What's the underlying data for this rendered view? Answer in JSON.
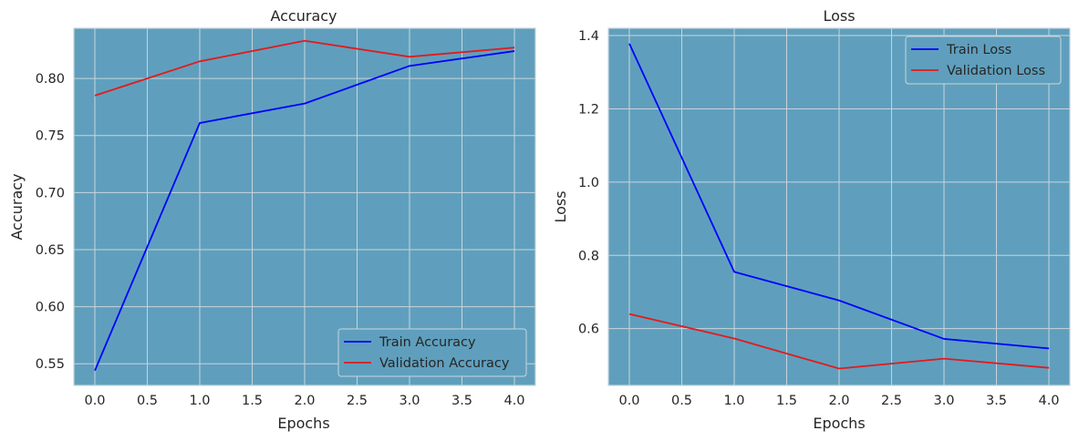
{
  "chart_data": [
    {
      "type": "line",
      "title": "Accuracy",
      "xlabel": "Epochs",
      "ylabel": "Accuracy",
      "x": [
        0,
        1,
        2,
        3,
        4
      ],
      "xlim": [
        -0.2,
        4.2
      ],
      "ylim": [
        0.531,
        0.844
      ],
      "xticks": [
        0.0,
        0.5,
        1.0,
        1.5,
        2.0,
        2.5,
        3.0,
        3.5,
        4.0
      ],
      "xtick_labels": [
        "0.0",
        "0.5",
        "1.0",
        "1.5",
        "2.0",
        "2.5",
        "3.0",
        "3.5",
        "4.0"
      ],
      "yticks": [
        0.55,
        0.6,
        0.65,
        0.7,
        0.75,
        0.8
      ],
      "ytick_labels": [
        "0.55",
        "0.60",
        "0.65",
        "0.70",
        "0.75",
        "0.80"
      ],
      "series": [
        {
          "name": "Train Accuracy",
          "color": "#0000ff",
          "values": [
            0.544,
            0.761,
            0.778,
            0.811,
            0.824
          ]
        },
        {
          "name": "Validation Accuracy",
          "color": "#e31a1c",
          "values": [
            0.785,
            0.815,
            0.833,
            0.819,
            0.827
          ]
        }
      ],
      "grid": true,
      "legend_position": "lower-right",
      "background_color": "#5f9fbd"
    },
    {
      "type": "line",
      "title": "Loss",
      "xlabel": "Epochs",
      "ylabel": "Loss",
      "x": [
        0,
        1,
        2,
        3,
        4
      ],
      "xlim": [
        -0.2,
        4.2
      ],
      "ylim": [
        0.445,
        1.42
      ],
      "xticks": [
        0.0,
        0.5,
        1.0,
        1.5,
        2.0,
        2.5,
        3.0,
        3.5,
        4.0
      ],
      "xtick_labels": [
        "0.0",
        "0.5",
        "1.0",
        "1.5",
        "2.0",
        "2.5",
        "3.0",
        "3.5",
        "4.0"
      ],
      "yticks": [
        0.6,
        0.8,
        1.0,
        1.2,
        1.4
      ],
      "ytick_labels": [
        "0.6",
        "0.8",
        "1.0",
        "1.2",
        "1.4"
      ],
      "series": [
        {
          "name": "Train Loss",
          "color": "#0000ff",
          "values": [
            1.378,
            0.755,
            0.677,
            0.572,
            0.546
          ]
        },
        {
          "name": "Validation Loss",
          "color": "#e31a1c",
          "values": [
            0.64,
            0.573,
            0.491,
            0.518,
            0.493
          ]
        }
      ],
      "grid": true,
      "legend_position": "upper-right",
      "background_color": "#5f9fbd"
    }
  ]
}
